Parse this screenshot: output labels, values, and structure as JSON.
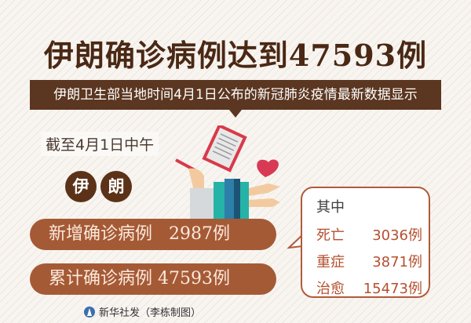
{
  "title": "伊朗确诊病例达到47593例",
  "subtitle": "伊朗卫生部当地时间4月1日公布的新冠肺炎疫情最新数据显示",
  "as_of": "截至4月1日中午",
  "country_chars": [
    "伊",
    "朗"
  ],
  "stats": [
    {
      "label": "新增确诊病例",
      "value": "2987例"
    },
    {
      "label": "累计确诊病例",
      "value": "47593例"
    }
  ],
  "breakdown": {
    "heading": "其中",
    "items": [
      {
        "label": "死亡",
        "value": "3036例"
      },
      {
        "label": "重症",
        "value": "3871例"
      },
      {
        "label": "治愈",
        "value": "15473例"
      }
    ]
  },
  "footer": "新华社发（李栋制图）",
  "colors": {
    "title": "#4a2814",
    "banner": "#5b3620",
    "pill": "#a55a36",
    "accent": "#b5502f"
  }
}
